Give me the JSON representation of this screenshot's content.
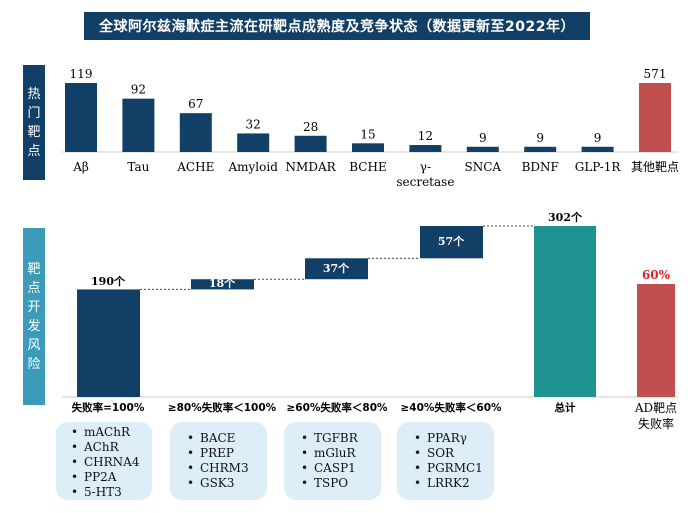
{
  "title": "全球阿尔兹海默症主流在研靶点成熟度及竞争状态（数据更新至2022年）",
  "top_panel": {
    "side_label": "热门靶点",
    "bar_color": "#123f66",
    "other_color": "#c0504d"
  },
  "bottom_panel": {
    "side_label": "靶点开发风险",
    "labels": {
      "base": "190个",
      "s1": "18个",
      "s2": "37个",
      "s3": "57个",
      "total": "302个",
      "fail": "60%"
    },
    "xlabels": {
      "base": "失败率=100%",
      "s1": "≥80%失败率＜100%",
      "s2": "≥60%失败率＜80%",
      "s3": "≥40%失败率＜60%",
      "total": "总计",
      "fail_a": "AD靶点",
      "fail_b": "失败率"
    },
    "colors": {
      "dark": "#123f66",
      "total": "#1e9391",
      "fail": "#c0504d",
      "fail_text": "#e02020"
    }
  },
  "chart_data": [
    {
      "type": "bar",
      "title": "热门靶点",
      "categories": [
        "Aβ",
        "Tau",
        "ACHE",
        "Amyloid",
        "NMDAR",
        "BCHE",
        "γ-secretase",
        "SNCA",
        "BDNF",
        "GLP-1R",
        "其他靶点"
      ],
      "category_lines": [
        [
          "Aβ"
        ],
        [
          "Tau"
        ],
        [
          "ACHE"
        ],
        [
          "Amyloid"
        ],
        [
          "NMDAR"
        ],
        [
          "BCHE"
        ],
        [
          "γ-",
          "secretase"
        ],
        [
          "SNCA"
        ],
        [
          "BDNF"
        ],
        [
          "GLP-1R"
        ],
        [
          "其他靶点"
        ]
      ],
      "values": [
        119,
        92,
        67,
        32,
        28,
        15,
        12,
        9,
        9,
        9,
        571
      ],
      "note": "the final bar (571) is drawn on a compressed scale, same height as the 119 bar"
    },
    {
      "type": "waterfall",
      "title": "靶点开发风险",
      "categories": [
        "失败率=100%",
        "≥80%失败率＜100%",
        "≥60%失败率＜80%",
        "≥40%失败率＜60%",
        "总计"
      ],
      "values": [
        190,
        18,
        37,
        57,
        302
      ],
      "kinds": [
        "base",
        "step",
        "step",
        "step",
        "total"
      ],
      "extra_bar": {
        "label": "AD靶点失败率",
        "value": 60,
        "unit": "%"
      }
    }
  ],
  "target_lists": [
    {
      "items": [
        "mAChR",
        "AChR",
        "CHRNA4",
        "PP2A",
        "5-HT3"
      ]
    },
    {
      "items": [
        "BACE",
        "PREP",
        "CHRM3",
        "GSK3"
      ]
    },
    {
      "items": [
        "TGFBR",
        "mGluR",
        "CASP1",
        "TSPO"
      ]
    },
    {
      "items": [
        "PPARγ",
        "SOR",
        "PGRMC1",
        "LRRK2"
      ]
    }
  ]
}
